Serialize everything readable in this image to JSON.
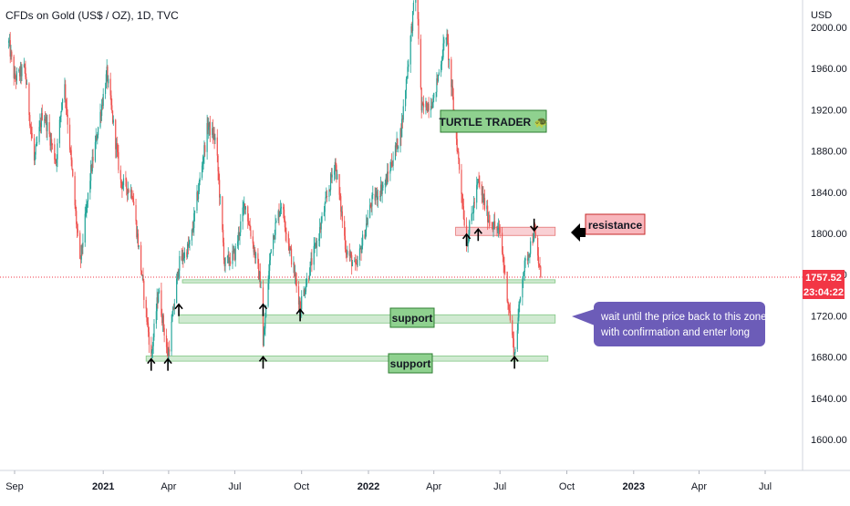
{
  "header": {
    "title": "CFDs on Gold (US$ / OZ), 1D, TVC",
    "currency": "USD"
  },
  "price_tag": {
    "price": "1757.52",
    "countdown": "23:04:22",
    "color": "#f23645"
  },
  "annotations": {
    "brand": "TURTLE TRADER 🐢",
    "resistance_label": "resistance",
    "support_upper_label": "support",
    "support_lower_label": "support",
    "note_line1": "wait until the price back to this zone",
    "note_line2": "with confirmation and enter long"
  },
  "colors": {
    "up_candle": "#26a69a",
    "down_candle": "#ef5350",
    "support_zone": "#c8e6c9",
    "resistance_zone": "#f8c8cc",
    "note_bg": "#6c5cb8",
    "brand_bg": "#8fd18f"
  },
  "chart_data": {
    "type": "candlestick",
    "title": "CFDs on Gold (US$ / OZ), 1D, TVC",
    "ylabel": "USD",
    "ylim": [
      1565,
      2045
    ],
    "y_ticks": [
      2000,
      1960,
      1920,
      1880,
      1840,
      1800,
      1760,
      1720,
      1680,
      1640,
      1600
    ],
    "y_tick_labels": [
      "2000.00",
      "1960.00",
      "1920.00",
      "1880.00",
      "1840.00",
      "1800.00",
      "1760.00",
      "1720.00",
      "1680.00",
      "1640.00",
      "1600.00"
    ],
    "x_tick_labels": [
      "Sep",
      "2021",
      "Apr",
      "Jul",
      "Oct",
      "2022",
      "Apr",
      "Jul",
      "Oct",
      "2023",
      "Apr",
      "Jul"
    ],
    "last_price": 1757.52,
    "price_path": [
      [
        "2020-08-24",
        1985
      ],
      [
        "2020-09-01",
        1950
      ],
      [
        "2020-09-15",
        1960
      ],
      [
        "2020-09-28",
        1870
      ],
      [
        "2020-10-10",
        1920
      ],
      [
        "2020-10-28",
        1870
      ],
      [
        "2020-11-08",
        1950
      ],
      [
        "2020-11-30",
        1770
      ],
      [
        "2020-12-15",
        1860
      ],
      [
        "2021-01-06",
        1955
      ],
      [
        "2021-01-25",
        1850
      ],
      [
        "2021-02-10",
        1840
      ],
      [
        "2021-03-08",
        1680
      ],
      [
        "2021-03-18",
        1745
      ],
      [
        "2021-03-31",
        1680
      ],
      [
        "2021-04-15",
        1770
      ],
      [
        "2021-05-01",
        1790
      ],
      [
        "2021-05-25",
        1905
      ],
      [
        "2021-06-05",
        1890
      ],
      [
        "2021-06-17",
        1770
      ],
      [
        "2021-07-01",
        1780
      ],
      [
        "2021-07-15",
        1830
      ],
      [
        "2021-08-06",
        1750
      ],
      [
        "2021-08-09",
        1690
      ],
      [
        "2021-08-20",
        1790
      ],
      [
        "2021-09-03",
        1830
      ],
      [
        "2021-09-29",
        1730
      ],
      [
        "2021-10-25",
        1800
      ],
      [
        "2021-11-16",
        1870
      ],
      [
        "2021-12-01",
        1785
      ],
      [
        "2021-12-15",
        1765
      ],
      [
        "2022-01-05",
        1830
      ],
      [
        "2022-01-25",
        1850
      ],
      [
        "2022-02-15",
        1900
      ],
      [
        "2022-03-08",
        2045
      ],
      [
        "2022-03-15",
        1920
      ],
      [
        "2022-04-01",
        1930
      ],
      [
        "2022-04-18",
        1995
      ],
      [
        "2022-05-16",
        1790
      ],
      [
        "2022-06-01",
        1850
      ],
      [
        "2022-06-15",
        1815
      ],
      [
        "2022-07-01",
        1800
      ],
      [
        "2022-07-21",
        1682
      ],
      [
        "2022-08-01",
        1760
      ],
      [
        "2022-08-17",
        1802
      ],
      [
        "2022-08-26",
        1757.52
      ]
    ],
    "zones": [
      {
        "type": "resistance",
        "label": "resistance",
        "range": [
          1798,
          1806
        ],
        "from": "2022-05-01",
        "to": "2022-09-15"
      },
      {
        "type": "support",
        "range": [
          1752,
          1755
        ],
        "from": "2021-04-20",
        "to": "2022-09-15"
      },
      {
        "type": "support",
        "label": "support",
        "range": [
          1713,
          1721
        ],
        "from": "2021-04-15",
        "to": "2022-09-15"
      },
      {
        "type": "support",
        "label": "support",
        "range": [
          1676,
          1681
        ],
        "from": "2021-03-01",
        "to": "2022-09-05"
      }
    ],
    "arrows": [
      {
        "dir": "up",
        "date": "2021-03-08",
        "value": 1672
      },
      {
        "dir": "up",
        "date": "2021-03-31",
        "value": 1672
      },
      {
        "dir": "up",
        "date": "2021-04-15",
        "value": 1725
      },
      {
        "dir": "up",
        "date": "2021-08-09",
        "value": 1725
      },
      {
        "dir": "up",
        "date": "2021-09-29",
        "value": 1720
      },
      {
        "dir": "up",
        "date": "2021-08-09",
        "value": 1674
      },
      {
        "dir": "up",
        "date": "2022-05-16",
        "value": 1793
      },
      {
        "dir": "up",
        "date": "2022-06-01",
        "value": 1798
      },
      {
        "dir": "down",
        "date": "2022-08-17",
        "value": 1809
      },
      {
        "dir": "up",
        "date": "2022-07-21",
        "value": 1674
      }
    ]
  }
}
